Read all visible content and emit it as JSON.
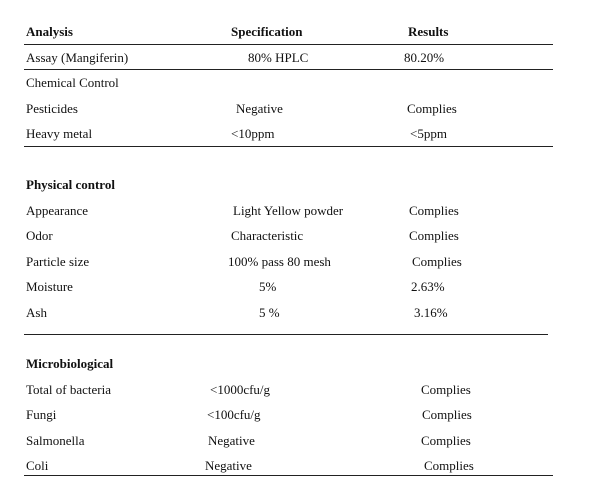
{
  "header": {
    "analysis": "Analysis",
    "specification": "Specification",
    "results": "Results"
  },
  "assay": {
    "name": "Assay (Mangiferin)",
    "spec": "80% HPLC",
    "result": "80.20%"
  },
  "chemical": {
    "title": "Chemical Control",
    "rows": [
      {
        "name": "Pesticides",
        "spec": "Negative",
        "result": "Complies"
      },
      {
        "name": "Heavy metal",
        "spec": "<10ppm",
        "result": "<5ppm"
      }
    ]
  },
  "physical": {
    "title": "Physical control",
    "rows": [
      {
        "name": "Appearance",
        "spec": "Light Yellow powder",
        "result": "Complies"
      },
      {
        "name": "Odor",
        "spec": "Characteristic",
        "result": "Complies"
      },
      {
        "name": "Particle size",
        "spec": "100% pass 80 mesh",
        "result": "Complies"
      },
      {
        "name": "Moisture",
        "spec": "5%",
        "result": "2.63%"
      },
      {
        "name": "Ash",
        "spec": "5 %",
        "result": "3.16%"
      }
    ]
  },
  "micro": {
    "title": "Microbiological",
    "rows": [
      {
        "name": "Total of bacteria",
        "spec": "<1000cfu/g",
        "result": "Complies"
      },
      {
        "name": "Fungi",
        "spec": "<100cfu/g",
        "result": "Complies"
      },
      {
        "name": "Salmonella",
        "spec": "Negative",
        "result": "Complies"
      },
      {
        "name": "Coli",
        "spec": "Negative",
        "result": "Complies"
      }
    ]
  }
}
